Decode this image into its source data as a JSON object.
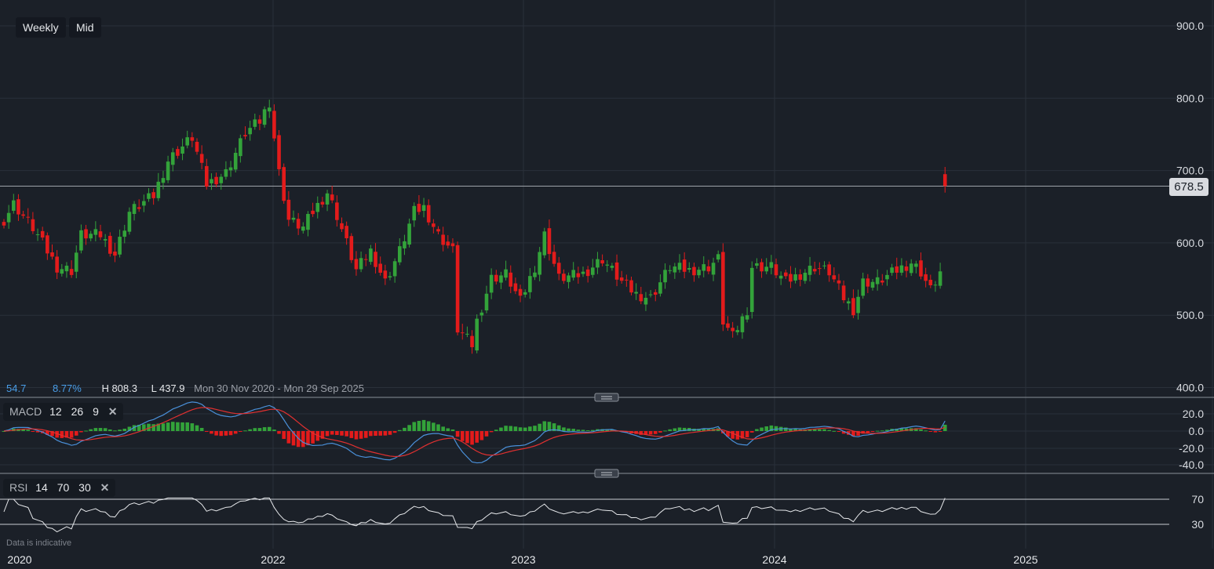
{
  "toolbar": {
    "interval": "Weekly",
    "price_type": "Mid"
  },
  "stats": {
    "change": "54.7",
    "change_pct": "8.77%",
    "high": "H 808.3",
    "low": "L 437.9",
    "range": "Mon 30 Nov 2020 - Mon 29 Sep 2025"
  },
  "last_price": "678.5",
  "macd_label": {
    "name": "MACD",
    "fast": "12",
    "slow": "26",
    "signal": "9"
  },
  "rsi_label": {
    "name": "RSI",
    "period": "14",
    "upper": "70",
    "lower": "30"
  },
  "note": "Data is indicative",
  "colors": {
    "up": "#33a33a",
    "down": "#e31b1b",
    "macd": "#4a90d9",
    "signal": "#e03030",
    "bg": "#1b2028",
    "grid": "#2a303a"
  },
  "chart_data": {
    "type": "candlestick",
    "price_axis": {
      "ticks": [
        "900.0",
        "800.0",
        "700.0",
        "600.0",
        "500.0",
        "400.0"
      ],
      "range": [
        400,
        900
      ]
    },
    "time_axis": {
      "ticks": [
        "2020",
        "2022",
        "2023",
        "2024",
        "2025"
      ]
    },
    "macd_axis": {
      "ticks": [
        "20.0",
        "0.0",
        "-20.0",
        "-40.0"
      ]
    },
    "rsi_axis": {
      "ticks": [
        "70",
        "30"
      ]
    },
    "weekly_closes": [
      [
        0,
        632
      ],
      [
        2,
        654
      ],
      [
        6,
        621
      ],
      [
        11,
        567
      ],
      [
        14,
        562
      ],
      [
        16,
        611
      ],
      [
        20,
        611
      ],
      [
        23,
        584
      ],
      [
        26,
        643
      ],
      [
        31,
        665
      ],
      [
        34,
        714
      ],
      [
        39,
        746
      ],
      [
        42,
        681
      ],
      [
        46,
        697
      ],
      [
        50,
        752
      ],
      [
        53,
        768
      ],
      [
        55,
        795
      ],
      [
        57,
        697
      ],
      [
        59,
        632
      ],
      [
        62,
        621
      ],
      [
        64,
        643
      ],
      [
        67,
        670
      ],
      [
        69,
        638
      ],
      [
        73,
        562
      ],
      [
        76,
        589
      ],
      [
        79,
        546
      ],
      [
        82,
        589
      ],
      [
        85,
        643
      ],
      [
        87,
        649
      ],
      [
        90,
        611
      ],
      [
        93,
        589
      ],
      [
        94,
        481
      ],
      [
        97,
        459
      ],
      [
        98,
        492
      ],
      [
        101,
        551
      ],
      [
        104,
        557
      ],
      [
        107,
        519
      ],
      [
        110,
        567
      ],
      [
        112,
        611
      ],
      [
        115,
        551
      ],
      [
        120,
        557
      ],
      [
        124,
        578
      ],
      [
        128,
        546
      ],
      [
        131,
        529
      ],
      [
        134,
        524
      ],
      [
        138,
        567
      ],
      [
        142,
        562
      ],
      [
        146,
        567
      ],
      [
        148,
        578
      ],
      [
        149,
        492
      ],
      [
        151,
        470
      ],
      [
        154,
        508
      ],
      [
        155,
        567
      ],
      [
        159,
        567
      ],
      [
        162,
        546
      ],
      [
        165,
        557
      ],
      [
        168,
        567
      ],
      [
        171,
        560
      ],
      [
        174,
        524
      ],
      [
        176,
        508
      ],
      [
        178,
        546
      ],
      [
        181,
        546
      ],
      [
        185,
        562
      ],
      [
        188,
        573
      ],
      [
        190,
        560
      ],
      [
        192,
        535
      ],
      [
        194,
        559
      ],
      [
        195,
        678.5
      ]
    ]
  }
}
